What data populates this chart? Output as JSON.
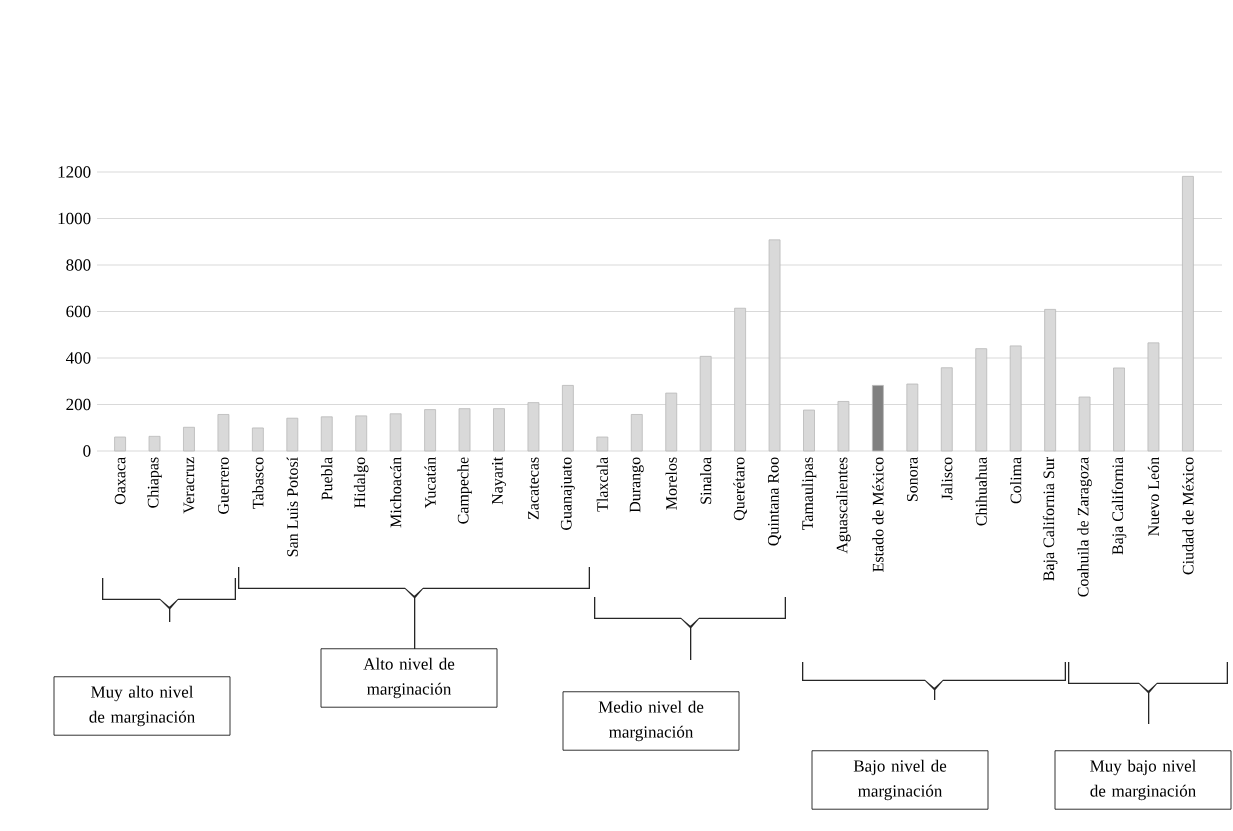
{
  "chart_data": {
    "type": "bar",
    "categories": [
      "Oaxaca",
      "Chiapas",
      "Veracruz",
      "Guerrero",
      "Tabasco",
      "San Luis Potosí",
      "Puebla",
      "Hidalgo",
      "Michoacán",
      "Yucatán",
      "Campeche",
      "Nayarit",
      "Zacatecas",
      "Guanajuato",
      "Tlaxcala",
      "Durango",
      "Morelos",
      "Sinaloa",
      "Querétaro",
      "Quintana Roo",
      "Tamaulipas",
      "Aguascalientes",
      "Estado de México",
      "Sonora",
      "Jalisco",
      "Chihuahua",
      "Colima",
      "Baja California Sur",
      "Coahuila de Zaragoza",
      "Baja California",
      "Nuevo León",
      "Ciudad de México"
    ],
    "values": [
      60,
      63,
      102,
      157,
      99,
      141,
      147,
      151,
      160,
      178,
      182,
      182,
      208,
      282,
      60,
      157,
      249,
      407,
      614,
      908,
      176,
      213,
      282,
      288,
      358,
      440,
      452,
      609,
      232,
      357,
      465,
      1181
    ],
    "colors": [
      "#d9d9d9",
      "#d9d9d9",
      "#d9d9d9",
      "#d9d9d9",
      "#d9d9d9",
      "#d9d9d9",
      "#d9d9d9",
      "#d9d9d9",
      "#d9d9d9",
      "#d9d9d9",
      "#d9d9d9",
      "#d9d9d9",
      "#d9d9d9",
      "#d9d9d9",
      "#d9d9d9",
      "#d9d9d9",
      "#d9d9d9",
      "#d9d9d9",
      "#d9d9d9",
      "#d9d9d9",
      "#d9d9d9",
      "#d9d9d9",
      "#808080",
      "#d9d9d9",
      "#d9d9d9",
      "#d9d9d9",
      "#d9d9d9",
      "#d9d9d9",
      "#d9d9d9",
      "#d9d9d9",
      "#d9d9d9",
      "#d9d9d9"
    ],
    "ylim": [
      0,
      1200
    ],
    "yticks": [
      0,
      200,
      400,
      600,
      800,
      1000,
      1200
    ],
    "grid": "y",
    "annotations": [
      "Muy alto nivel de marginación",
      "Alto nivel de marginación",
      "Medio nivel de marginación",
      "Bajo nivel de marginación",
      "Muy bajo nivel de marginación"
    ]
  }
}
